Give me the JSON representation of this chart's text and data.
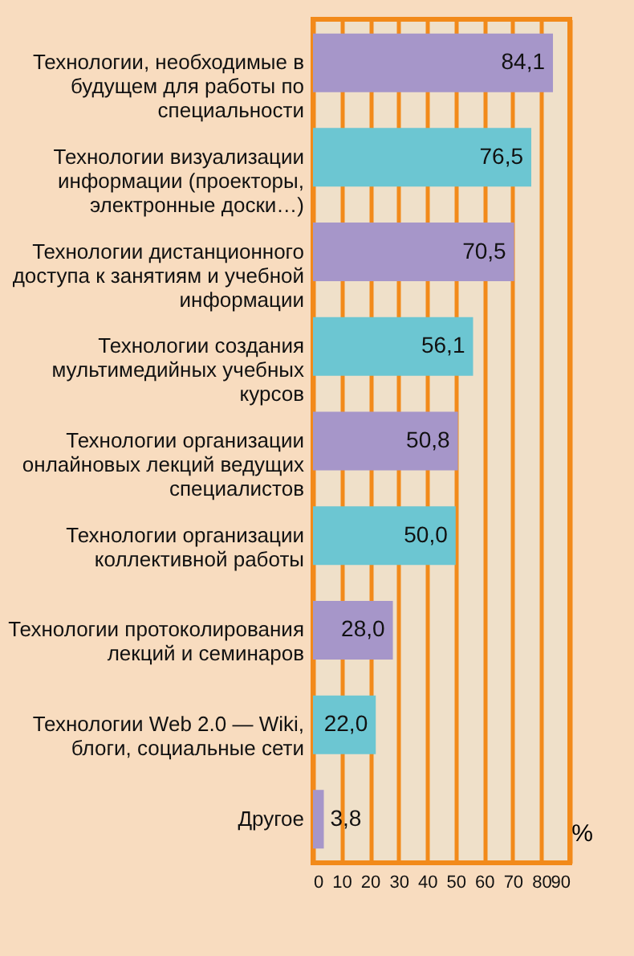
{
  "chart_data": {
    "type": "bar",
    "orientation": "horizontal",
    "xlabel": "%",
    "categories": [
      "Технологии, необходимые в будущем для работы по специальности",
      "Технологии визуализации информации (проекторы, электронные доски…)",
      "Технологии дистанционного доступа к занятиям и учебной информации",
      "Технологии создания мультимедийных учебных курсов",
      "Технологии организации онлайновых лекций ведущих специалистов",
      "Технологии организации коллективной работы",
      "Технологии протоколирования лекций и семинаров",
      "Технологии Web 2.0 — Wiki, блоги, социальные сети",
      "Другое"
    ],
    "values": [
      84.1,
      76.5,
      70.5,
      56.1,
      50.8,
      50.0,
      28.0,
      22.0,
      3.8
    ],
    "value_labels": [
      "84,1",
      "76,5",
      "70,5",
      "56,1",
      "50,8",
      "50,0",
      "28,0",
      "22,0",
      "3,8"
    ],
    "colors": [
      "#a696c9",
      "#6cc6d2",
      "#a696c9",
      "#6cc6d2",
      "#a696c9",
      "#6cc6d2",
      "#a696c9",
      "#6cc6d2",
      "#a696c9"
    ],
    "xlim": [
      0,
      90
    ],
    "xticks": [
      0,
      10,
      20,
      30,
      40,
      50,
      60,
      70,
      80,
      90
    ],
    "grid": "x"
  }
}
